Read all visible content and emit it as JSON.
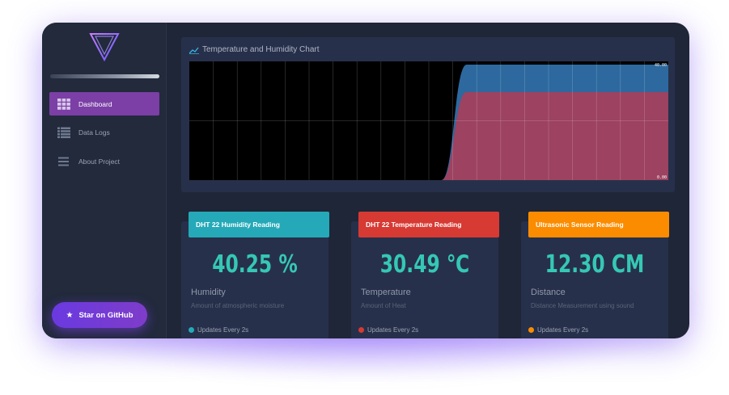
{
  "sidebar": {
    "logo_icon": "triangle-logo-icon",
    "items": [
      {
        "label": "Dashboard",
        "icon": "grid-icon",
        "active": true
      },
      {
        "label": "Data Logs",
        "icon": "list-icon",
        "active": false
      },
      {
        "label": "About Project",
        "icon": "menu-icon",
        "active": false
      }
    ],
    "github_button": {
      "label": "Star on GitHub",
      "icon": "star-icon"
    }
  },
  "chart": {
    "title": "Temperature and Humidity Chart",
    "icon": "chart-line-icon",
    "label_max": "40.00",
    "label_min": "0.00"
  },
  "chart_data": {
    "type": "area",
    "title": "Temperature and Humidity Chart",
    "series": [
      {
        "name": "",
        "color": "#2f6fa8",
        "values": [
          0,
          0,
          0,
          0,
          0,
          0,
          0,
          0,
          0,
          0,
          0,
          40.25,
          40.25,
          40.25,
          40.25,
          40.25,
          40.25,
          40.25,
          40.25,
          40.25
        ]
      },
      {
        "name": "",
        "color": "#a3405e",
        "values": [
          0,
          0,
          0,
          0,
          0,
          0,
          0,
          0,
          0,
          0,
          0,
          30.49,
          30.49,
          30.49,
          30.49,
          30.49,
          30.49,
          30.49,
          30.49,
          30.49
        ]
      }
    ],
    "ylim": [
      0,
      40
    ],
    "grid": true,
    "xlabel": "",
    "ylabel": ""
  },
  "cards": [
    {
      "header": "DHT 22 Humidity Reading",
      "header_color": "#25a9b8",
      "value": "40.25 %",
      "label": "Humidity",
      "sub": "Amount of atmospheric moisture",
      "footer": "Updates Every 2s",
      "dot_color": "#25a9b8"
    },
    {
      "header": "DHT 22 Temperature Reading",
      "header_color": "#d63a33",
      "value": "30.49 ℃",
      "label": "Temperature",
      "sub": "Amount of Heat",
      "footer": "Updates Every 2s",
      "dot_color": "#d63a33"
    },
    {
      "header": "Ultrasonic Sensor Reading",
      "header_color": "#fb8c00",
      "value": "12.30 CM",
      "label": "Distance",
      "sub": "Distance Measurement using sound",
      "footer": "Updates Every 2s",
      "dot_color": "#fb8c00"
    }
  ]
}
